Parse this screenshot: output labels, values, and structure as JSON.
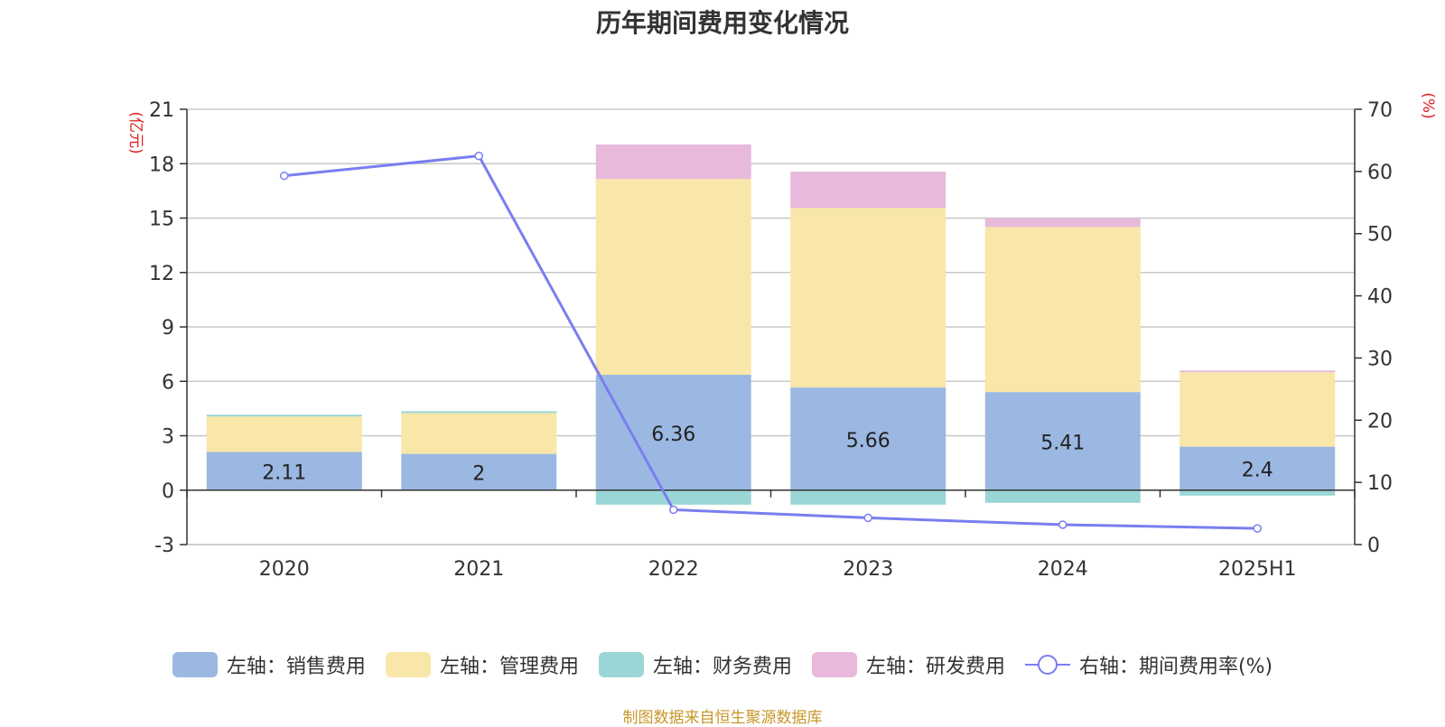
{
  "chart_data": {
    "type": "bar",
    "title": "历年期间费用变化情况",
    "categories": [
      "2020",
      "2021",
      "2022",
      "2023",
      "2024",
      "2025H1"
    ],
    "left_axis": {
      "label": "(亿元)",
      "range": [
        -3,
        21
      ],
      "ticks": [
        -3,
        0,
        3,
        6,
        9,
        12,
        15,
        18,
        21
      ]
    },
    "right_axis": {
      "label": "(%)",
      "range": [
        0,
        70
      ],
      "ticks": [
        0,
        10,
        20,
        30,
        40,
        50,
        60,
        70
      ]
    },
    "series": [
      {
        "name": "左轴：销售费用",
        "type": "bar",
        "axis": "left",
        "color": "#9bb8e2",
        "values": [
          2.11,
          2,
          6.36,
          5.66,
          5.41,
          2.4
        ],
        "labels": [
          "2.11",
          "2",
          "6.36",
          "5.66",
          "5.41",
          "2.4"
        ]
      },
      {
        "name": "左轴：管理费用",
        "type": "bar",
        "axis": "left",
        "color": "#f8e7a8",
        "values": [
          1.95,
          2.25,
          10.8,
          9.9,
          9.1,
          4.1
        ]
      },
      {
        "name": "左轴：财务费用",
        "type": "bar",
        "axis": "left",
        "color": "#9ad6d6",
        "values": [
          0.1,
          0.1,
          -0.8,
          -0.8,
          -0.7,
          -0.3
        ]
      },
      {
        "name": "左轴：研发费用",
        "type": "bar",
        "axis": "left",
        "color": "#e8b9da",
        "values": [
          0,
          0,
          1.9,
          2.0,
          0.5,
          0.1
        ]
      },
      {
        "name": "右轴：期间费用率(%)",
        "type": "line",
        "axis": "right",
        "color": "#7a7ef0",
        "values": [
          59.3,
          62.5,
          5.6,
          4.3,
          3.2,
          2.6
        ]
      }
    ],
    "grid": true,
    "legend_position": "bottom"
  },
  "source_note": "制图数据来自恒生聚源数据库"
}
